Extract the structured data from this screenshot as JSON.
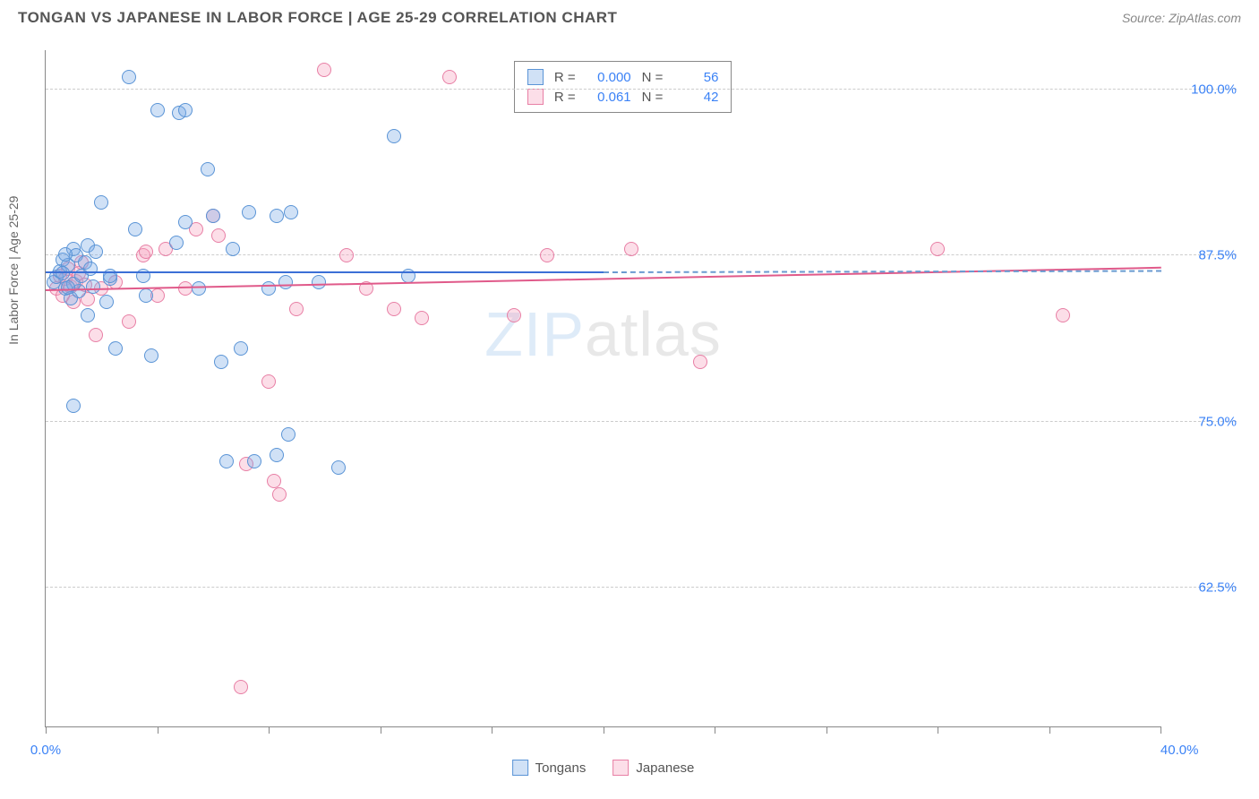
{
  "header": {
    "title": "TONGAN VS JAPANESE IN LABOR FORCE | AGE 25-29 CORRELATION CHART",
    "source": "Source: ZipAtlas.com"
  },
  "chart": {
    "type": "scatter",
    "y_axis_label": "In Labor Force | Age 25-29",
    "x_range": [
      0,
      40
    ],
    "y_range": [
      52,
      103
    ],
    "y_ticks": [
      62.5,
      75.0,
      87.5,
      100.0
    ],
    "y_tick_labels": [
      "62.5%",
      "75.0%",
      "87.5%",
      "100.0%"
    ],
    "x_ticks": [
      0,
      4,
      8,
      12,
      16,
      20,
      24,
      28,
      32,
      36,
      40
    ],
    "x_tick_labels": {
      "start": "0.0%",
      "end": "40.0%"
    },
    "background_color": "#ffffff",
    "grid_color": "#cccccc",
    "axis_color": "#888888",
    "point_radius": 8,
    "point_stroke_width": 1.5,
    "series": [
      {
        "name": "Tongans",
        "fill": "rgba(120,170,230,0.35)",
        "stroke": "#5a94d6",
        "trend_color": "#3b6fd6",
        "trend_dashed_color": "#6a9ad0",
        "R": "0.000",
        "N": "56",
        "trend": {
          "x1": 0,
          "y1": 86.2,
          "x2": 20,
          "y2": 86.2,
          "dash_x2": 40,
          "dash_y2": 86.3
        },
        "points": [
          [
            0.3,
            85.5
          ],
          [
            0.4,
            85.9
          ],
          [
            0.5,
            86.3
          ],
          [
            0.6,
            87.2
          ],
          [
            0.7,
            85.0
          ],
          [
            0.8,
            86.8
          ],
          [
            0.9,
            84.3
          ],
          [
            1.0,
            88.0
          ],
          [
            1.1,
            87.5
          ],
          [
            1.2,
            84.8
          ],
          [
            1.0,
            85.4
          ],
          [
            1.3,
            86.0
          ],
          [
            1.4,
            87.0
          ],
          [
            1.5,
            88.3
          ],
          [
            1.5,
            83.0
          ],
          [
            1.7,
            85.2
          ],
          [
            1.8,
            87.8
          ],
          [
            2.0,
            91.5
          ],
          [
            2.2,
            84.0
          ],
          [
            2.3,
            85.8
          ],
          [
            2.3,
            86.0
          ],
          [
            2.5,
            80.5
          ],
          [
            3.0,
            101.0
          ],
          [
            3.2,
            89.5
          ],
          [
            3.5,
            86.0
          ],
          [
            3.6,
            84.5
          ],
          [
            3.8,
            80.0
          ],
          [
            4.0,
            98.5
          ],
          [
            4.7,
            88.5
          ],
          [
            4.8,
            98.3
          ],
          [
            5.0,
            98.5
          ],
          [
            5.0,
            90.0
          ],
          [
            5.5,
            85.0
          ],
          [
            5.8,
            94.0
          ],
          [
            6.0,
            90.5
          ],
          [
            6.3,
            79.5
          ],
          [
            6.5,
            72.0
          ],
          [
            6.7,
            88.0
          ],
          [
            7.0,
            80.5
          ],
          [
            7.3,
            90.8
          ],
          [
            7.5,
            72.0
          ],
          [
            8.0,
            85.0
          ],
          [
            8.3,
            72.5
          ],
          [
            8.3,
            90.5
          ],
          [
            8.6,
            85.5
          ],
          [
            8.7,
            74.0
          ],
          [
            8.8,
            90.8
          ],
          [
            9.8,
            85.5
          ],
          [
            10.5,
            71.5
          ],
          [
            12.5,
            96.5
          ],
          [
            13.0,
            86.0
          ],
          [
            1.0,
            76.2
          ],
          [
            0.6,
            86.2
          ],
          [
            0.7,
            87.6
          ],
          [
            0.8,
            85.1
          ],
          [
            1.6,
            86.5
          ]
        ]
      },
      {
        "name": "Japanese",
        "fill": "rgba(245,160,190,0.35)",
        "stroke": "#e87fa5",
        "trend_color": "#e05a8a",
        "R": "0.061",
        "N": "42",
        "trend": {
          "x1": 0,
          "y1": 84.8,
          "x2": 40,
          "y2": 86.5
        },
        "points": [
          [
            0.4,
            85.0
          ],
          [
            0.5,
            86.0
          ],
          [
            0.6,
            84.5
          ],
          [
            0.7,
            85.8
          ],
          [
            0.8,
            86.5
          ],
          [
            0.9,
            85.2
          ],
          [
            1.0,
            84.0
          ],
          [
            1.1,
            85.6
          ],
          [
            1.2,
            86.2
          ],
          [
            1.3,
            87.0
          ],
          [
            1.4,
            85.3
          ],
          [
            1.5,
            84.2
          ],
          [
            2.5,
            85.5
          ],
          [
            3.0,
            82.5
          ],
          [
            3.5,
            87.5
          ],
          [
            3.6,
            87.8
          ],
          [
            4.0,
            84.5
          ],
          [
            4.3,
            88.0
          ],
          [
            5.0,
            85.0
          ],
          [
            5.4,
            89.5
          ],
          [
            6.0,
            90.5
          ],
          [
            6.2,
            89.0
          ],
          [
            7.0,
            55.0
          ],
          [
            7.2,
            71.8
          ],
          [
            8.0,
            78.0
          ],
          [
            8.2,
            70.5
          ],
          [
            8.4,
            69.5
          ],
          [
            9.0,
            83.5
          ],
          [
            10.0,
            101.5
          ],
          [
            10.8,
            87.5
          ],
          [
            11.5,
            85.0
          ],
          [
            12.5,
            83.5
          ],
          [
            13.5,
            82.8
          ],
          [
            14.5,
            101.0
          ],
          [
            16.8,
            83.0
          ],
          [
            18.0,
            87.5
          ],
          [
            21.0,
            88.0
          ],
          [
            23.5,
            79.5
          ],
          [
            32.0,
            88.0
          ],
          [
            36.5,
            83.0
          ],
          [
            1.8,
            81.5
          ],
          [
            2.0,
            85.0
          ]
        ]
      }
    ],
    "bottom_legend": [
      "Tongans",
      "Japanese"
    ],
    "watermark": {
      "part1": "ZIP",
      "part2": "atlas"
    }
  }
}
